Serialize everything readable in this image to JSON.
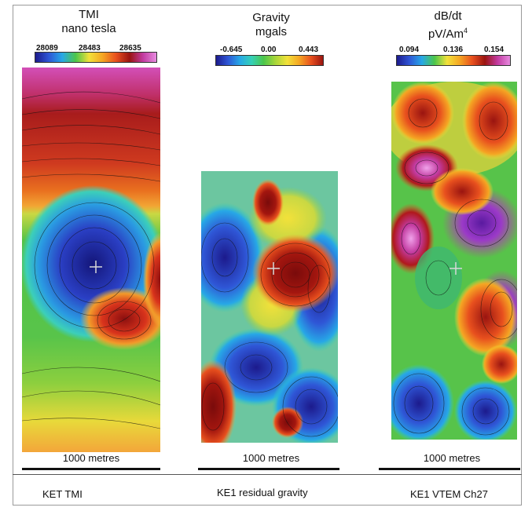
{
  "panels": [
    {
      "title_line1": "TMI",
      "title_line2": "nano tesla",
      "ticks": [
        "28089",
        "28483",
        "28635"
      ],
      "scale_label": "1000 metres",
      "caption": "KET TMI"
    },
    {
      "title_line1": "Gravity",
      "title_line2": "mgals",
      "ticks": [
        "-0.645",
        "0.00",
        "0.443"
      ],
      "scale_label": "1000 metres",
      "caption": "KE1 residual gravity"
    },
    {
      "title_line1": "dB/dt",
      "title_line2": "pV/Am",
      "title_line2_sup": "4",
      "ticks": [
        "0.094",
        "0.136",
        "0.154"
      ],
      "scale_label": "1000 metres",
      "caption": "KE1 VTEM Ch27"
    }
  ],
  "colors": {
    "spectrum": [
      "#1c1a8c",
      "#2f56d6",
      "#27a8e6",
      "#35d0b6",
      "#4cc64a",
      "#a8d63a",
      "#f2e13a",
      "#f5a623",
      "#e8501e",
      "#9a1410",
      "#c23aa0",
      "#e78be0"
    ]
  }
}
